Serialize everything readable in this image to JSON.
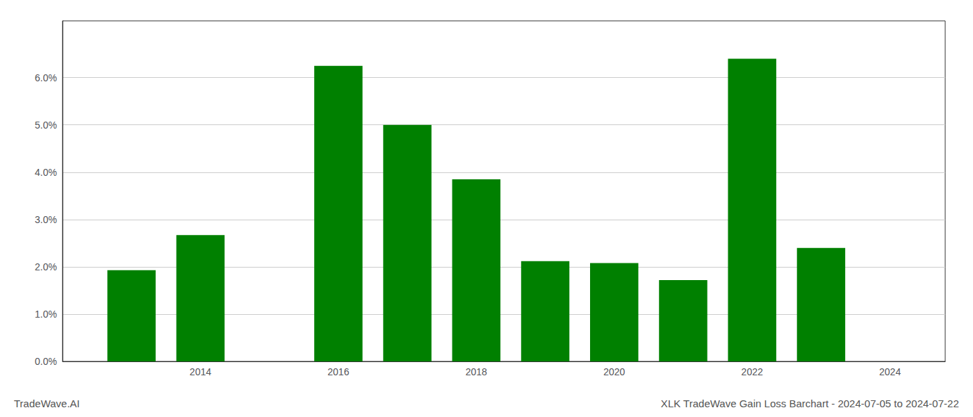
{
  "chart_data": {
    "type": "bar",
    "x": [
      2013,
      2014,
      2016,
      2017,
      2018,
      2019,
      2020,
      2021,
      2022,
      2023
    ],
    "values": [
      0.0193,
      0.0267,
      0.0625,
      0.05,
      0.0385,
      0.0212,
      0.0208,
      0.0172,
      0.064,
      0.024
    ],
    "color": "#008000",
    "xlim": [
      2012.0,
      2024.8
    ],
    "xticks": [
      2014,
      2016,
      2018,
      2020,
      2022,
      2024
    ],
    "ylim": [
      0.0,
      0.072
    ],
    "yticks": [
      {
        "value": 0.0,
        "label": "0.0%"
      },
      {
        "value": 0.01,
        "label": "1.0%"
      },
      {
        "value": 0.02,
        "label": "2.0%"
      },
      {
        "value": 0.03,
        "label": "3.0%"
      },
      {
        "value": 0.04,
        "label": "4.0%"
      },
      {
        "value": 0.05,
        "label": "5.0%"
      },
      {
        "value": 0.06,
        "label": "6.0%"
      }
    ],
    "annotations": [
      "TradeWave.AI",
      "XLK TradeWave Gain Loss Barchart - 2024-07-05 to 2024-07-22"
    ],
    "grid": true
  }
}
